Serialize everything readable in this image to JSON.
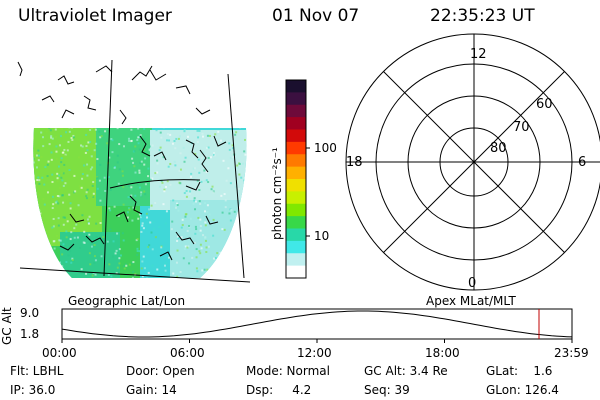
{
  "header": {
    "title": "Ultraviolet Imager",
    "date": "01 Nov 07",
    "time": "22:35:23 UT"
  },
  "colorbar": {
    "unit_label": "photon cm⁻²s⁻¹",
    "ticks": [
      "100",
      "10"
    ],
    "colors": [
      "#1a0f2e",
      "#3b1040",
      "#6e0a3a",
      "#a00020",
      "#d20a0a",
      "#ff3a00",
      "#ff7a00",
      "#ffb000",
      "#f0e000",
      "#c8f000",
      "#80e800",
      "#38d848",
      "#28d8a8",
      "#40e8e8",
      "#c0f0f0",
      "#ffffff"
    ]
  },
  "map_labels": {
    "left": "Geographic Lat/Lon",
    "right": "Apex MLat/MLT"
  },
  "polar": {
    "mlt_labels": {
      "top": "12",
      "left": "18",
      "right": "6",
      "bottom": "0"
    },
    "lat_labels": [
      "60",
      "70",
      "80"
    ]
  },
  "altitude_plot": {
    "ylabel": "GC Alt",
    "yticks": [
      "9.0",
      "1.8"
    ],
    "xticks": [
      "00:00",
      "06:00",
      "12:00",
      "18:00",
      "23:59"
    ],
    "marker_color": "#c00000"
  },
  "status": {
    "row1": [
      "Flt: LBHL",
      "Door: Open",
      "Mode: Normal",
      "GC Alt: 3.4 Re",
      "GLat:    1.6"
    ],
    "row2": [
      "IP: 36.0",
      "Gain: 14",
      "Dsp:     4.2",
      "Seq: 39",
      "GLon: 126.4"
    ]
  }
}
